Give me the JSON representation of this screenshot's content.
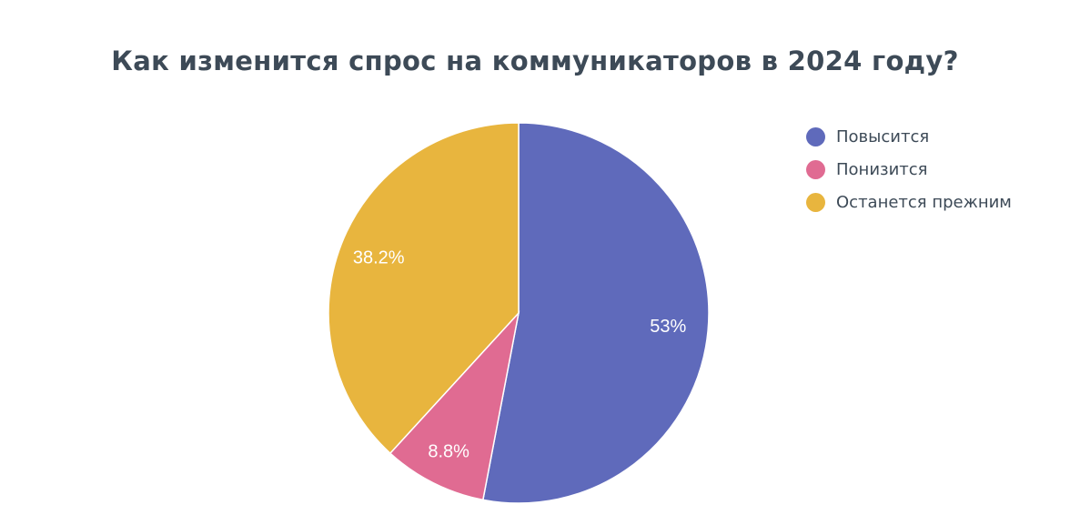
{
  "chart_data": {
    "type": "pie",
    "title": "Как изменится спрос на коммуникаторов в 2024 году?",
    "legend_position": "right",
    "slices": [
      {
        "name": "Повысится",
        "value": 53,
        "label": "53%",
        "color": "#5f6abb"
      },
      {
        "name": "Понизится",
        "value": 8.8,
        "label": "8.8%",
        "color": "#e06b92"
      },
      {
        "name": "Останется прежним",
        "value": 38.2,
        "label": "38.2%",
        "color": "#e8b53e"
      }
    ]
  }
}
